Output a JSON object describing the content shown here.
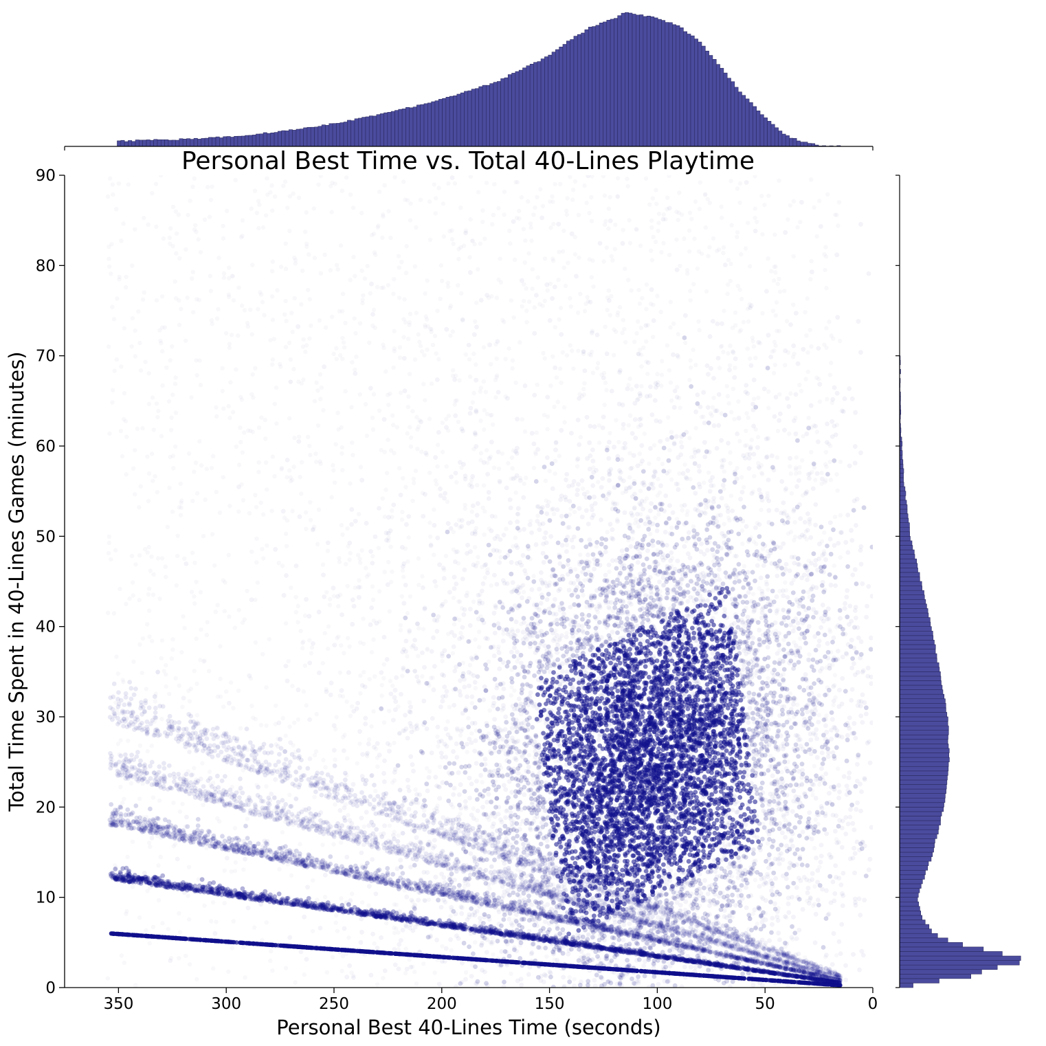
{
  "chart_data": {
    "type": "scatter",
    "title": "Personal Best Time vs. Total 40-Lines Playtime",
    "xlabel": "Personal Best 40-Lines Time (seconds)",
    "ylabel": "Total Time Spent in 40-Lines Games (minutes)",
    "xlim": [
      375,
      0
    ],
    "ylim": [
      0,
      90
    ],
    "x_inverted": true,
    "x_ticks": [
      350,
      300,
      250,
      200,
      150,
      100,
      50,
      0
    ],
    "y_ticks": [
      0,
      10,
      20,
      30,
      40,
      50,
      60,
      70,
      80,
      90
    ],
    "grid": false,
    "marker_color": "#10108c",
    "hist_color": "#4b4b9e",
    "hist_edge_color": "#2a2a60",
    "bands": [
      {
        "games": 1,
        "x_range": [
          354,
          15
        ],
        "y_at_x_start": 6.0
      },
      {
        "games": 2,
        "x_range": [
          354,
          15
        ],
        "y_at_x_start": 12.0
      },
      {
        "games": 3,
        "x_range": [
          354,
          15
        ],
        "y_at_x_start": 18.0
      },
      {
        "games": 4,
        "x_range": [
          354,
          15
        ],
        "y_at_x_start": 23.6
      },
      {
        "games": 5,
        "x_range": [
          354,
          15
        ],
        "y_at_x_start": 29.5
      }
    ],
    "dense_cluster": {
      "center_x": 105,
      "center_y": 25,
      "x_spread": 35,
      "y_spread": 11
    },
    "top_histogram": {
      "x_range": [
        354,
        15
      ],
      "bin_centers": [
        350,
        325,
        300,
        275,
        250,
        225,
        200,
        175,
        150,
        140,
        130,
        120,
        115,
        110,
        100,
        90,
        80,
        70,
        60,
        50,
        40,
        30,
        20
      ],
      "relative_heights": [
        0.04,
        0.05,
        0.07,
        0.11,
        0.17,
        0.25,
        0.35,
        0.48,
        0.68,
        0.8,
        0.9,
        0.96,
        1.0,
        0.99,
        0.96,
        0.9,
        0.78,
        0.58,
        0.38,
        0.22,
        0.08,
        0.02,
        0.0
      ]
    },
    "right_histogram": {
      "y_range": [
        0,
        70
      ],
      "bin_centers": [
        0.5,
        1,
        2,
        3,
        4,
        5,
        6,
        8,
        10,
        15,
        20,
        25,
        30,
        35,
        40,
        45,
        50,
        55,
        60,
        65,
        70
      ],
      "relative_heights": [
        0.1,
        0.5,
        0.65,
        0.98,
        0.7,
        0.4,
        0.25,
        0.16,
        0.13,
        0.25,
        0.33,
        0.37,
        0.36,
        0.3,
        0.24,
        0.16,
        0.08,
        0.04,
        0.015,
        0.005,
        0.002
      ]
    }
  }
}
